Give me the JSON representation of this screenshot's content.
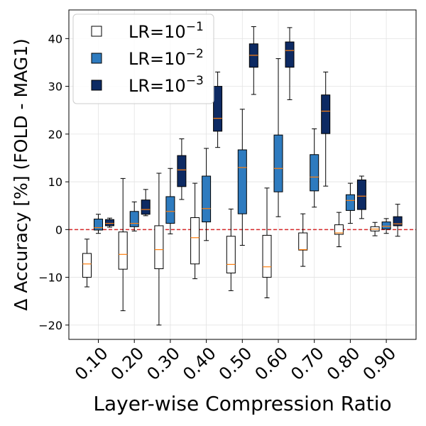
{
  "chart_data": {
    "type": "boxplot",
    "title": "",
    "xlabel": "Layer-wise Compression Ratio",
    "ylabel": "Δ Accuracy [%] (FOLD - MAG1)",
    "ylim": [
      -23,
      46
    ],
    "yticks": [
      -20,
      -10,
      0,
      10,
      20,
      30,
      40
    ],
    "categories": [
      "0.10",
      "0.20",
      "0.30",
      "0.40",
      "0.50",
      "0.60",
      "0.70",
      "0.80",
      "0.90"
    ],
    "reference_line": {
      "y": 0,
      "color": "#d62728",
      "style": "dashed"
    },
    "grid": true,
    "legend_location": "top-left",
    "series": [
      {
        "name": "LR=10^-1",
        "label_base": "LR=10",
        "label_exp": "−1",
        "color": "#ffffff",
        "boxes": [
          {
            "whislo": -12,
            "q1": -10,
            "med": -7.2,
            "q3": -5,
            "whishi": -2
          },
          {
            "whislo": -17,
            "q1": -8.3,
            "med": -5.2,
            "q3": -0.5,
            "whishi": 10.7
          },
          {
            "whislo": -20,
            "q1": -8.2,
            "med": -4.2,
            "q3": 0.8,
            "whishi": 11.8
          },
          {
            "whislo": -10.3,
            "q1": -7.2,
            "med": -1.7,
            "q3": 2.5,
            "whishi": 9.7
          },
          {
            "whislo": -12.8,
            "q1": -9.1,
            "med": -7.3,
            "q3": -1.4,
            "whishi": 4.3
          },
          {
            "whislo": -14.3,
            "q1": -10,
            "med": -7.8,
            "q3": -1.2,
            "whishi": 8.7
          },
          {
            "whislo": -7.7,
            "q1": -4.3,
            "med": -4.2,
            "q3": -0.7,
            "whishi": 3.3
          },
          {
            "whislo": -3.6,
            "q1": -1,
            "med": -0.7,
            "q3": 1,
            "whishi": 3.6
          },
          {
            "whislo": -1.3,
            "q1": -0.3,
            "med": 0.1,
            "q3": 0.6,
            "whishi": 1.5
          }
        ]
      },
      {
        "name": "LR=10^-2",
        "label_base": "LR=10",
        "label_exp": "−2",
        "color": "#2e7bbf",
        "boxes": [
          {
            "whislo": -0.8,
            "q1": -0.1,
            "med": 0.4,
            "q3": 2.2,
            "whishi": 3.2
          },
          {
            "whislo": -0.3,
            "q1": 0.6,
            "med": 1.3,
            "q3": 3.8,
            "whishi": 5.8
          },
          {
            "whislo": -0.9,
            "q1": 1.3,
            "med": 3.8,
            "q3": 6.9,
            "whishi": 12.8
          },
          {
            "whislo": -2.3,
            "q1": 1.6,
            "med": 4.4,
            "q3": 11.2,
            "whishi": 17
          },
          {
            "whislo": -3.3,
            "q1": 3.3,
            "med": 13,
            "q3": 16.7,
            "whishi": 25.2
          },
          {
            "whislo": 2.7,
            "q1": 7.9,
            "med": 12.8,
            "q3": 19.8,
            "whishi": 35.8
          },
          {
            "whislo": 4.7,
            "q1": 8.1,
            "med": 11,
            "q3": 15.7,
            "whishi": 21.1
          },
          {
            "whislo": 1.3,
            "q1": 4,
            "med": 6.1,
            "q3": 7.3,
            "whishi": 9.7
          },
          {
            "whislo": -0.8,
            "q1": 0.1,
            "med": 0.7,
            "q3": 1.6,
            "whishi": 2.3
          }
        ]
      },
      {
        "name": "LR=10^-3",
        "label_base": "LR=10",
        "label_exp": "−3",
        "color": "#0d2a63",
        "boxes": [
          {
            "whislo": 0.5,
            "q1": 0.8,
            "med": 1.3,
            "q3": 2.1,
            "whishi": 2.4
          },
          {
            "whislo": 2.9,
            "q1": 3.2,
            "med": 4.2,
            "q3": 6.2,
            "whishi": 8.4
          },
          {
            "whislo": 6.3,
            "q1": 9,
            "med": 12.5,
            "q3": 15.5,
            "whishi": 19
          },
          {
            "whislo": 17.2,
            "q1": 20.6,
            "med": 23.3,
            "q3": 30,
            "whishi": 33
          },
          {
            "whislo": 28.3,
            "q1": 34,
            "med": 36.5,
            "q3": 38.9,
            "whishi": 42.5
          },
          {
            "whislo": 27.2,
            "q1": 34,
            "med": 37.5,
            "q3": 39.3,
            "whishi": 42.3
          },
          {
            "whislo": 9.1,
            "q1": 20.1,
            "med": 24.8,
            "q3": 28.2,
            "whishi": 33
          },
          {
            "whislo": 2.3,
            "q1": 4.2,
            "med": 7,
            "q3": 10.4,
            "whishi": 11.2
          },
          {
            "whislo": -1.4,
            "q1": 0.8,
            "med": 1.2,
            "q3": 2.7,
            "whishi": 5.3
          }
        ]
      }
    ],
    "median_color": "#ff7f0e",
    "ref_line_color": "#d62728"
  }
}
